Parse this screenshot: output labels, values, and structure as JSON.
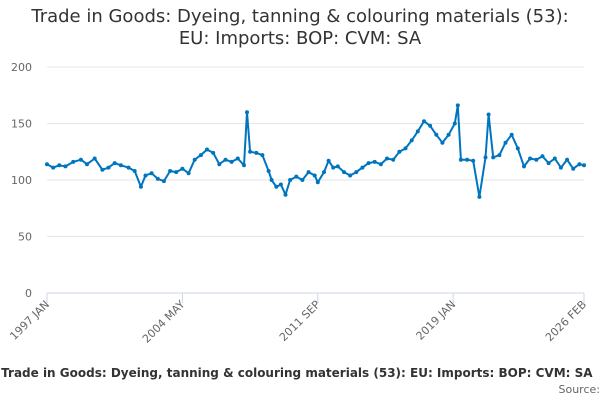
{
  "chart_data": {
    "type": "line",
    "title_line1": "Trade in Goods: Dyeing, tanning & colouring materials (53):",
    "title_line2": "EU: Imports: BOP: CVM: SA",
    "legend_text": "- Trade in Goods: Dyeing, tanning & colouring materials (53): EU: Imports: BOP: CVM: SA",
    "source_text": "Source:",
    "ylim": [
      0,
      200
    ],
    "y_ticks": [
      "0",
      "50",
      "100",
      "150",
      "200"
    ],
    "x_ticks": [
      "1997 JAN",
      "2004 MAY",
      "2011 SEP",
      "2019 JAN",
      "2026 FEB"
    ],
    "x_range": [
      "1997-01",
      "2026-02"
    ],
    "grid": true,
    "line_color": "#0075bf",
    "series": [
      {
        "values": [
          [
            "1997-01",
            114
          ],
          [
            "1997-05",
            111
          ],
          [
            "1997-09",
            113
          ],
          [
            "1998-01",
            112
          ],
          [
            "1998-06",
            116
          ],
          [
            "1998-11",
            118
          ],
          [
            "1999-03",
            114
          ],
          [
            "1999-08",
            119
          ],
          [
            "2000-01",
            109
          ],
          [
            "2000-05",
            111
          ],
          [
            "2000-09",
            115
          ],
          [
            "2001-01",
            113
          ],
          [
            "2001-06",
            111
          ],
          [
            "2001-10",
            108
          ],
          [
            "2002-02",
            94
          ],
          [
            "2002-05",
            104
          ],
          [
            "2002-09",
            106
          ],
          [
            "2003-01",
            101
          ],
          [
            "2003-05",
            99
          ],
          [
            "2003-09",
            108
          ],
          [
            "2004-01",
            107
          ],
          [
            "2004-05",
            110
          ],
          [
            "2004-09",
            106
          ],
          [
            "2005-01",
            118
          ],
          [
            "2005-05",
            122
          ],
          [
            "2005-09",
            127
          ],
          [
            "2006-01",
            124
          ],
          [
            "2006-05",
            114
          ],
          [
            "2006-09",
            118
          ],
          [
            "2007-01",
            116
          ],
          [
            "2007-05",
            119
          ],
          [
            "2007-09",
            113
          ],
          [
            "2007-11",
            160
          ],
          [
            "2008-01",
            125
          ],
          [
            "2008-05",
            124
          ],
          [
            "2008-09",
            122
          ],
          [
            "2009-01",
            108
          ],
          [
            "2009-03",
            100
          ],
          [
            "2009-06",
            94
          ],
          [
            "2009-09",
            96
          ],
          [
            "2009-12",
            87
          ],
          [
            "2010-03",
            100
          ],
          [
            "2010-07",
            103
          ],
          [
            "2010-11",
            100
          ],
          [
            "2011-03",
            107
          ],
          [
            "2011-07",
            104
          ],
          [
            "2011-09",
            98
          ],
          [
            "2012-01",
            107
          ],
          [
            "2012-04",
            117
          ],
          [
            "2012-07",
            111
          ],
          [
            "2012-10",
            112
          ],
          [
            "2013-02",
            107
          ],
          [
            "2013-06",
            104
          ],
          [
            "2013-10",
            107
          ],
          [
            "2014-02",
            111
          ],
          [
            "2014-06",
            115
          ],
          [
            "2014-10",
            116
          ],
          [
            "2015-02",
            114
          ],
          [
            "2015-06",
            119
          ],
          [
            "2015-10",
            118
          ],
          [
            "2016-02",
            125
          ],
          [
            "2016-06",
            128
          ],
          [
            "2016-10",
            135
          ],
          [
            "2017-02",
            143
          ],
          [
            "2017-06",
            152
          ],
          [
            "2017-10",
            148
          ],
          [
            "2018-02",
            140
          ],
          [
            "2018-06",
            133
          ],
          [
            "2018-10",
            140
          ],
          [
            "2019-02",
            150
          ],
          [
            "2019-04",
            166
          ],
          [
            "2019-06",
            118
          ],
          [
            "2019-10",
            118
          ],
          [
            "2020-02",
            117
          ],
          [
            "2020-06",
            85
          ],
          [
            "2020-10",
            120
          ],
          [
            "2020-12",
            158
          ],
          [
            "2021-03",
            120
          ],
          [
            "2021-07",
            122
          ],
          [
            "2021-11",
            133
          ],
          [
            "2022-03",
            140
          ],
          [
            "2022-07",
            128
          ],
          [
            "2022-11",
            112
          ],
          [
            "2023-03",
            119
          ],
          [
            "2023-07",
            118
          ],
          [
            "2023-11",
            121
          ],
          [
            "2024-03",
            115
          ],
          [
            "2024-07",
            119
          ],
          [
            "2024-11",
            111
          ],
          [
            "2025-03",
            118
          ],
          [
            "2025-07",
            110
          ],
          [
            "2025-11",
            114
          ],
          [
            "2026-02",
            113
          ]
        ]
      }
    ]
  }
}
